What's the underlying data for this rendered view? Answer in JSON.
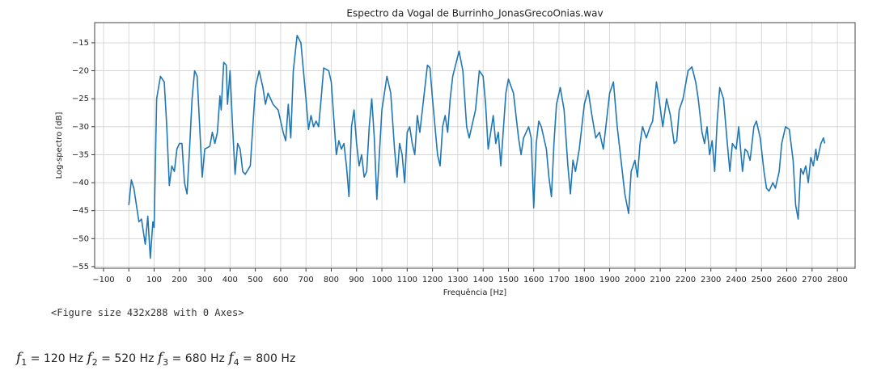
{
  "chart_data": {
    "type": "line",
    "title": "Espectro da Vogal de Burrinho_JonasGrecoOnias.wav",
    "x_label": "Frequência [Hz]",
    "y_label": "Log-spectro [dB]",
    "x": [
      0,
      10,
      20,
      30,
      40,
      50,
      65,
      75,
      85,
      95,
      100,
      110,
      125,
      140,
      150,
      160,
      170,
      180,
      190,
      200,
      210,
      220,
      230,
      240,
      250,
      260,
      270,
      280,
      290,
      300,
      320,
      330,
      340,
      350,
      360,
      365,
      375,
      385,
      390,
      400,
      410,
      420,
      430,
      440,
      450,
      460,
      480,
      490,
      500,
      515,
      530,
      540,
      550,
      570,
      590,
      610,
      620,
      630,
      640,
      650,
      665,
      680,
      700,
      710,
      720,
      730,
      740,
      750,
      760,
      770,
      790,
      800,
      820,
      830,
      840,
      850,
      860,
      870,
      880,
      890,
      900,
      910,
      920,
      930,
      940,
      950,
      960,
      970,
      980,
      990,
      1000,
      1020,
      1035,
      1050,
      1060,
      1070,
      1080,
      1090,
      1100,
      1110,
      1120,
      1130,
      1140,
      1150,
      1180,
      1190,
      1200,
      1220,
      1230,
      1240,
      1250,
      1260,
      1270,
      1280,
      1305,
      1320,
      1335,
      1345,
      1360,
      1370,
      1385,
      1400,
      1410,
      1420,
      1430,
      1440,
      1450,
      1460,
      1470,
      1490,
      1500,
      1520,
      1540,
      1550,
      1560,
      1580,
      1590,
      1600,
      1610,
      1620,
      1630,
      1650,
      1660,
      1670,
      1680,
      1690,
      1705,
      1720,
      1735,
      1745,
      1755,
      1765,
      1780,
      1800,
      1815,
      1830,
      1845,
      1860,
      1875,
      1890,
      1900,
      1915,
      1930,
      1945,
      1960,
      1975,
      1985,
      2000,
      2010,
      2020,
      2030,
      2045,
      2060,
      2070,
      2085,
      2095,
      2110,
      2125,
      2140,
      2155,
      2165,
      2175,
      2190,
      2210,
      2225,
      2240,
      2250,
      2265,
      2275,
      2285,
      2295,
      2305,
      2315,
      2325,
      2335,
      2350,
      2365,
      2375,
      2385,
      2400,
      2410,
      2425,
      2435,
      2445,
      2455,
      2470,
      2480,
      2495,
      2510,
      2520,
      2530,
      2545,
      2555,
      2570,
      2580,
      2595,
      2610,
      2625,
      2635,
      2645,
      2655,
      2665,
      2675,
      2685,
      2695,
      2705,
      2715,
      2720,
      2735,
      2745,
      2750
    ],
    "series": [
      {
        "color": "#1f77b4",
        "values": [
          -44,
          -39.5,
          -41,
          -44,
          -47,
          -46.5,
          -51,
          -46,
          -53.5,
          -47,
          -48,
          -25,
          -21,
          -22,
          -30,
          -40.5,
          -37,
          -38,
          -34,
          -33,
          -33,
          -40,
          -42,
          -34,
          -25,
          -20,
          -21,
          -30,
          -39,
          -34,
          -33.5,
          -31,
          -33,
          -31,
          -24.5,
          -27,
          -18.5,
          -19,
          -26,
          -20,
          -30,
          -38.5,
          -33,
          -34,
          -38,
          -38.5,
          -37,
          -30,
          -23,
          -20,
          -23,
          -26,
          -24,
          -26,
          -27,
          -31,
          -32.5,
          -26,
          -32,
          -20,
          -13.7,
          -15,
          -25,
          -30.5,
          -28,
          -30,
          -29,
          -30,
          -25,
          -19.5,
          -20,
          -22,
          -35,
          -32.5,
          -34,
          -33,
          -37,
          -42.5,
          -30,
          -27,
          -33,
          -37,
          -35,
          -39,
          -38,
          -30,
          -25,
          -32,
          -43,
          -35,
          -27,
          -21,
          -24,
          -34,
          -39,
          -33,
          -35,
          -40,
          -31,
          -30,
          -33,
          -35,
          -28,
          -31,
          -19,
          -19.5,
          -25,
          -35,
          -37,
          -30,
          -28,
          -31,
          -25,
          -21,
          -16.5,
          -20,
          -30,
          -32,
          -29,
          -27,
          -20,
          -21,
          -26,
          -34,
          -31,
          -28,
          -33,
          -31,
          -37,
          -24,
          -21.5,
          -24,
          -32,
          -35,
          -32,
          -30,
          -32,
          -44.5,
          -33,
          -29,
          -30,
          -34,
          -39,
          -42.5,
          -33,
          -26,
          -23,
          -27,
          -37,
          -42,
          -36,
          -38,
          -34,
          -26,
          -23.5,
          -28,
          -32,
          -31,
          -34,
          -28,
          -24,
          -22,
          -30,
          -36,
          -42,
          -45.5,
          -38,
          -36,
          -39,
          -33,
          -30,
          -32,
          -30,
          -29,
          -22,
          -25,
          -30,
          -25,
          -28,
          -33,
          -32.5,
          -27,
          -25,
          -20,
          -19.3,
          -22,
          -25,
          -31,
          -33,
          -30,
          -35,
          -32.5,
          -38,
          -29,
          -23,
          -25,
          -33,
          -38,
          -33,
          -34,
          -30,
          -38,
          -34,
          -34.5,
          -36,
          -30,
          -29,
          -32,
          -38,
          -41,
          -41.5,
          -40,
          -41,
          -38,
          -33,
          -30,
          -30.5,
          -36,
          -44,
          -46.5,
          -37.5,
          -38.5,
          -37,
          -40,
          -35.5,
          -37,
          -34,
          -36,
          -33,
          -32,
          -33
        ]
      }
    ],
    "xlim": [
      -135,
      2870
    ],
    "ylim": [
      -55.3,
      -11.4
    ],
    "xticks": [
      {
        "value": -100,
        "label": "−100"
      },
      0,
      100,
      200,
      300,
      400,
      500,
      600,
      700,
      800,
      900,
      1000,
      1100,
      1200,
      1300,
      1400,
      1500,
      1600,
      1700,
      1800,
      1900,
      2000,
      2100,
      2200,
      2300,
      2400,
      2500,
      2600,
      2700,
      2800
    ],
    "yticks": [
      {
        "value": -55,
        "label": "−55"
      },
      {
        "value": -50,
        "label": "−50"
      },
      {
        "value": -45,
        "label": "−45"
      },
      {
        "value": -40,
        "label": "−40"
      },
      {
        "value": -35,
        "label": "−35"
      },
      {
        "value": -30,
        "label": "−30"
      },
      {
        "value": -25,
        "label": "−25"
      },
      {
        "value": -20,
        "label": "−20"
      },
      {
        "value": -15,
        "label": "−15"
      }
    ],
    "grid": true
  },
  "figure_output": "<Figure size 432x288 with 0 Axes>",
  "formula": [
    {
      "symbol": "f",
      "index": "1",
      "text": " = 120 Hz "
    },
    {
      "symbol": "f",
      "index": "2",
      "text": " = 520 Hz "
    },
    {
      "symbol": "f",
      "index": "3",
      "text": " = 680 Hz "
    },
    {
      "symbol": "f",
      "index": "4",
      "text": " = 800 Hz"
    }
  ]
}
